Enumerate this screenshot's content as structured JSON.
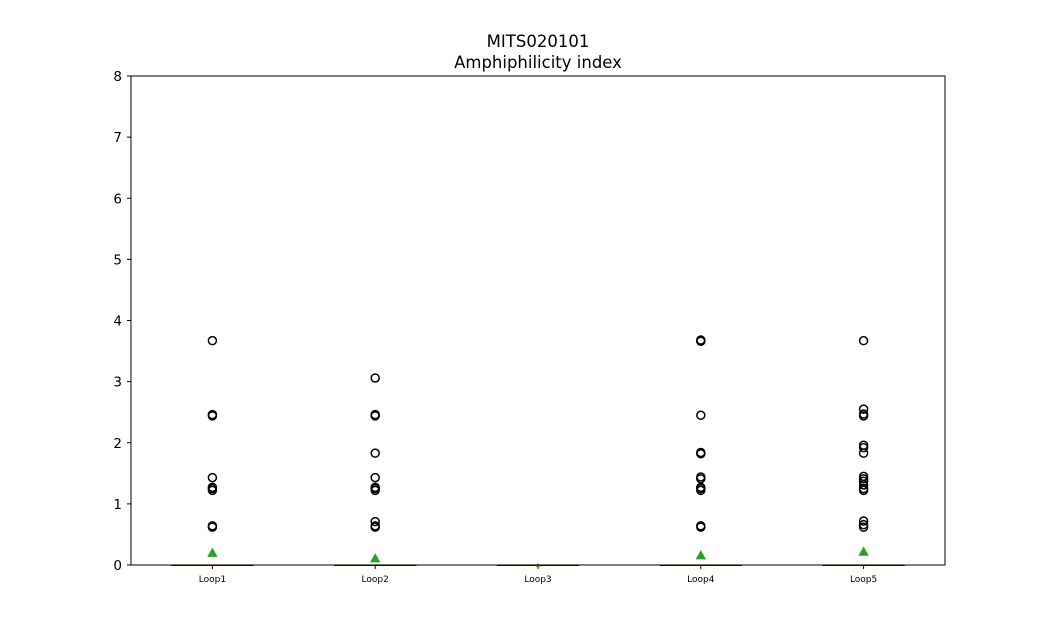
{
  "chart_data": {
    "type": "box",
    "title": "MITS020101",
    "subtitle": "Amphiphilicity index",
    "xlabel": "",
    "ylabel": "",
    "ylim": [
      0,
      8
    ],
    "yticks": [
      "0",
      "1",
      "2",
      "3",
      "4",
      "5",
      "6",
      "7",
      "8"
    ],
    "grid": false,
    "categories": [
      "Loop1",
      "Loop2",
      "Loop3",
      "Loop4",
      "Loop5"
    ],
    "boxes": [
      {
        "category": "Loop1",
        "q1": 0,
        "median": 0,
        "q3": 0,
        "whisker_low": 0,
        "whisker_high": 0,
        "mean": 0.2,
        "outliers": [
          0.62,
          0.64,
          1.22,
          1.25,
          1.27,
          1.43,
          2.44,
          2.46,
          3.67
        ]
      },
      {
        "category": "Loop2",
        "q1": 0,
        "median": 0,
        "q3": 0,
        "whisker_low": 0,
        "whisker_high": 0,
        "mean": 0.11,
        "outliers": [
          0.62,
          0.64,
          0.71,
          1.22,
          1.25,
          1.27,
          1.43,
          1.83,
          2.44,
          2.46,
          3.06
        ]
      },
      {
        "category": "Loop3",
        "q1": 0,
        "median": 0,
        "q3": 0,
        "whisker_low": 0,
        "whisker_high": 0,
        "mean": 0.0,
        "outliers": []
      },
      {
        "category": "Loop4",
        "q1": 0,
        "median": 0,
        "q3": 0,
        "whisker_low": 0,
        "whisker_high": 0,
        "mean": 0.16,
        "outliers": [
          0.62,
          0.64,
          1.22,
          1.25,
          1.27,
          1.41,
          1.44,
          1.82,
          1.84,
          2.45,
          3.66,
          3.68
        ]
      },
      {
        "category": "Loop5",
        "q1": 0,
        "median": 0,
        "q3": 0,
        "whisker_low": 0,
        "whisker_high": 0,
        "mean": 0.22,
        "outliers": [
          0.62,
          0.66,
          0.72,
          1.22,
          1.25,
          1.31,
          1.37,
          1.41,
          1.45,
          1.83,
          1.92,
          1.96,
          2.44,
          2.47,
          2.55,
          3.67
        ]
      }
    ],
    "colors": {
      "median": "#ff7f0e",
      "mean_marker": "#2ca02c",
      "outlier_edge": "#000000",
      "box": "#000000",
      "axes": "#000000",
      "background": "#ffffff"
    }
  }
}
